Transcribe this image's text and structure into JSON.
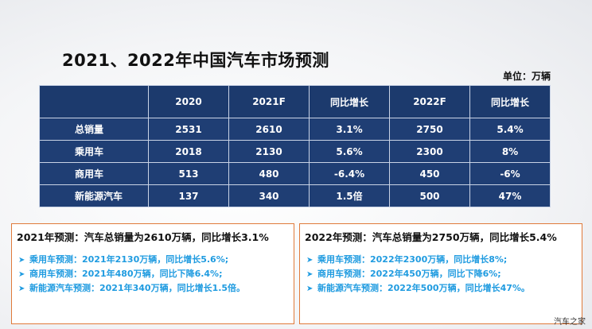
{
  "title": "2021、2022年中国汽车市场预测",
  "unit": "单位：万辆",
  "table": {
    "headers": [
      "",
      "2020",
      "2021F",
      "同比增长",
      "2022F",
      "同比增长"
    ],
    "rows": [
      [
        "总销量",
        "2531",
        "2610",
        "3.1%",
        "2750",
        "5.4%"
      ],
      [
        "乘用车",
        "2018",
        "2130",
        "5.6%",
        "2300",
        "8%"
      ],
      [
        "商用车",
        "513",
        "480",
        "-6.4%",
        "450",
        "-6%"
      ],
      [
        "新能源汽车",
        "137",
        "340",
        "1.5倍",
        "500",
        "47%"
      ]
    ]
  },
  "boxes": [
    {
      "title": "2021年预测：汽车总销量为2610万辆，同比增长3.1%",
      "items": [
        "乘用车预测：2021年2130万辆，同比增长5.6%;",
        "商用车预测：2021年480万辆，同比下降6.4%;",
        "新能源汽车预测：2021年340万辆，同比增长1.5倍。"
      ]
    },
    {
      "title": "2022年预测：汽车总销量为2750万辆，同比增长5.4%",
      "items": [
        "乘用车预测：2022年2300万辆，同比增长8%;",
        "商用车预测：2022年450万辆，同比下降6%;",
        "新能源汽车预测：2022年500万辆，同比增长47%。"
      ]
    }
  ],
  "watermark": "汽车之家",
  "bullet_icon": "arrow-right-icon",
  "colors": {
    "table_bg": "#1f3e74",
    "box_border": "#e07a3a",
    "bullet_text": "#1f9be0"
  }
}
